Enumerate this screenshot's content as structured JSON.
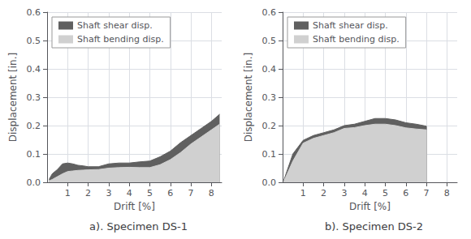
{
  "chart_data": [
    {
      "type": "area",
      "title": "a). Specimen DS-1",
      "x_label": "Drift [%]",
      "y_label": "Displacement [in.]",
      "x": [
        0.1,
        0.25,
        0.5,
        0.75,
        1.0,
        1.25,
        1.5,
        1.75,
        2.0,
        2.5,
        3.0,
        3.5,
        4.0,
        4.5,
        5.0,
        5.5,
        6.0,
        6.5,
        7.0,
        7.5,
        8.0,
        8.4
      ],
      "series": [
        {
          "name": "Shaft shear disp.",
          "color": "#606060",
          "values": [
            0.01,
            0.03,
            0.045,
            0.065,
            0.068,
            0.065,
            0.06,
            0.058,
            0.055,
            0.055,
            0.065,
            0.068,
            0.068,
            0.072,
            0.075,
            0.09,
            0.11,
            0.14,
            0.165,
            0.19,
            0.215,
            0.24
          ]
        },
        {
          "name": "Shaft bending disp.",
          "color": "#d0d0d0",
          "values": [
            0.005,
            0.01,
            0.02,
            0.03,
            0.038,
            0.04,
            0.042,
            0.043,
            0.044,
            0.045,
            0.05,
            0.052,
            0.053,
            0.052,
            0.052,
            0.062,
            0.08,
            0.105,
            0.135,
            0.16,
            0.185,
            0.205
          ]
        }
      ],
      "xlim": [
        0,
        8.5
      ],
      "xticks": [
        1,
        2,
        3,
        4,
        5,
        6,
        7,
        8
      ],
      "ylim": [
        0,
        0.6
      ],
      "yticks": [
        {
          "value": 0,
          "label": "0.0"
        },
        0.1,
        0.2,
        0.3,
        0.4,
        0.5,
        0.6
      ],
      "grid": true,
      "legend": "upper left"
    },
    {
      "type": "area",
      "title": "b). Specimen DS-2",
      "x_label": "Drift [%]",
      "y_label": "Displacement [in.]",
      "x": [
        0.05,
        0.5,
        1.0,
        1.5,
        2.0,
        2.5,
        3.0,
        3.5,
        4.0,
        4.5,
        5.0,
        5.5,
        6.0,
        6.5,
        7.0,
        7.0
      ],
      "series": [
        {
          "name": "Shaft shear disp.",
          "color": "#606060",
          "values": [
            0.005,
            0.1,
            0.148,
            0.165,
            0.175,
            0.185,
            0.2,
            0.205,
            0.215,
            0.225,
            0.225,
            0.22,
            0.21,
            0.205,
            0.198,
            0.0
          ]
        },
        {
          "name": "Shaft bending disp.",
          "color": "#d0d0d0",
          "values": [
            0.002,
            0.075,
            0.138,
            0.155,
            0.165,
            0.175,
            0.19,
            0.193,
            0.2,
            0.205,
            0.205,
            0.2,
            0.192,
            0.188,
            0.185,
            0.0
          ]
        }
      ],
      "xlim": [
        0,
        8.5
      ],
      "xticks": [
        1,
        2,
        3,
        4,
        5,
        6,
        7,
        8
      ],
      "ylim": [
        0,
        0.6
      ],
      "yticks": [
        {
          "value": 0,
          "label": "0.0"
        },
        0.1,
        0.2,
        0.3,
        0.4,
        0.5,
        0.6
      ],
      "grid": true,
      "legend": "upper left"
    }
  ]
}
